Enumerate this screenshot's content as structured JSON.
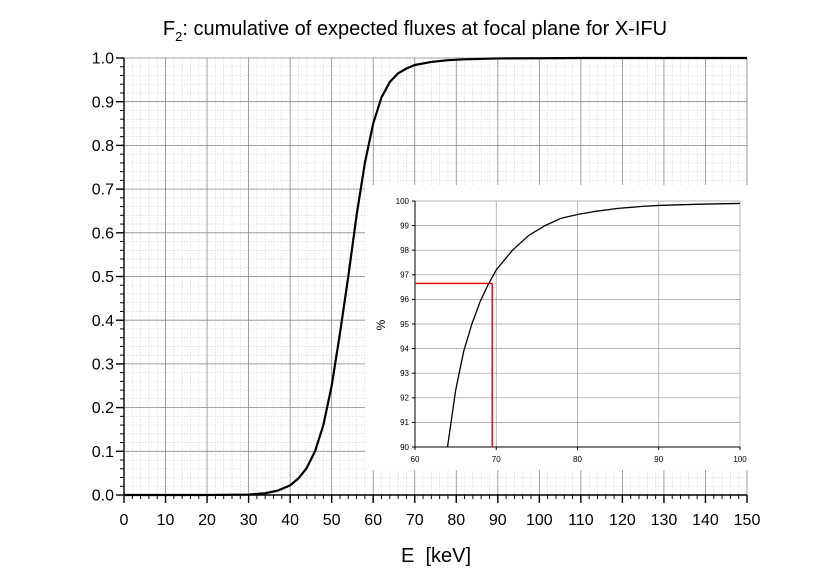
{
  "chart_data": [
    {
      "type": "line",
      "title": {
        "prefix": "F",
        "subscript": "2",
        "rest": ": cumulative of expected fluxes at focal plane for X-IFU"
      },
      "xlabel": "E  [keV]",
      "ylabel": "",
      "xlim": [
        0,
        150
      ],
      "ylim": [
        0.0,
        1.0
      ],
      "xticks": [
        0,
        10,
        20,
        30,
        40,
        50,
        60,
        70,
        80,
        90,
        100,
        110,
        120,
        130,
        140,
        150
      ],
      "yticks": [
        "0.0",
        "0.1",
        "0.2",
        "0.3",
        "0.4",
        "0.5",
        "0.6",
        "0.7",
        "0.8",
        "0.9",
        "1.0"
      ],
      "grid": true,
      "series": [
        {
          "color": "#000000",
          "x": [
            0,
            20,
            30,
            34,
            37,
            40,
            42,
            44,
            46,
            48,
            50,
            52,
            54,
            56,
            58,
            60,
            62,
            64,
            66,
            68,
            70,
            74,
            78,
            82,
            86,
            90,
            100,
            110,
            120,
            130,
            150
          ],
          "y": [
            0.0,
            0.0,
            0.001,
            0.004,
            0.01,
            0.022,
            0.038,
            0.062,
            0.1,
            0.16,
            0.25,
            0.37,
            0.5,
            0.64,
            0.76,
            0.85,
            0.91,
            0.945,
            0.965,
            0.976,
            0.984,
            0.991,
            0.995,
            0.997,
            0.998,
            0.999,
            0.9995,
            1.0,
            1.0,
            1.0,
            1.0
          ]
        }
      ]
    },
    {
      "type": "line",
      "title": "",
      "xlabel": "",
      "ylabel": "%",
      "xlim": [
        60,
        100
      ],
      "ylim": [
        90,
        100
      ],
      "xticks": [
        60,
        70,
        80,
        90,
        100
      ],
      "yticks": [
        90,
        91,
        92,
        93,
        94,
        95,
        96,
        97,
        98,
        99,
        100
      ],
      "grid": true,
      "series": [
        {
          "color": "#000000",
          "x": [
            64,
            65,
            66,
            67,
            68,
            69,
            70,
            72,
            74,
            76,
            78,
            80,
            82,
            85,
            88,
            90,
            95,
            100
          ],
          "y": [
            90.0,
            92.3,
            93.9,
            95.0,
            95.9,
            96.6,
            97.2,
            98.0,
            98.6,
            99.0,
            99.3,
            99.45,
            99.57,
            99.7,
            99.78,
            99.82,
            99.87,
            99.9
          ]
        }
      ],
      "markers": {
        "color": "#e00000",
        "x": 69.5,
        "y": 96.65
      }
    }
  ]
}
